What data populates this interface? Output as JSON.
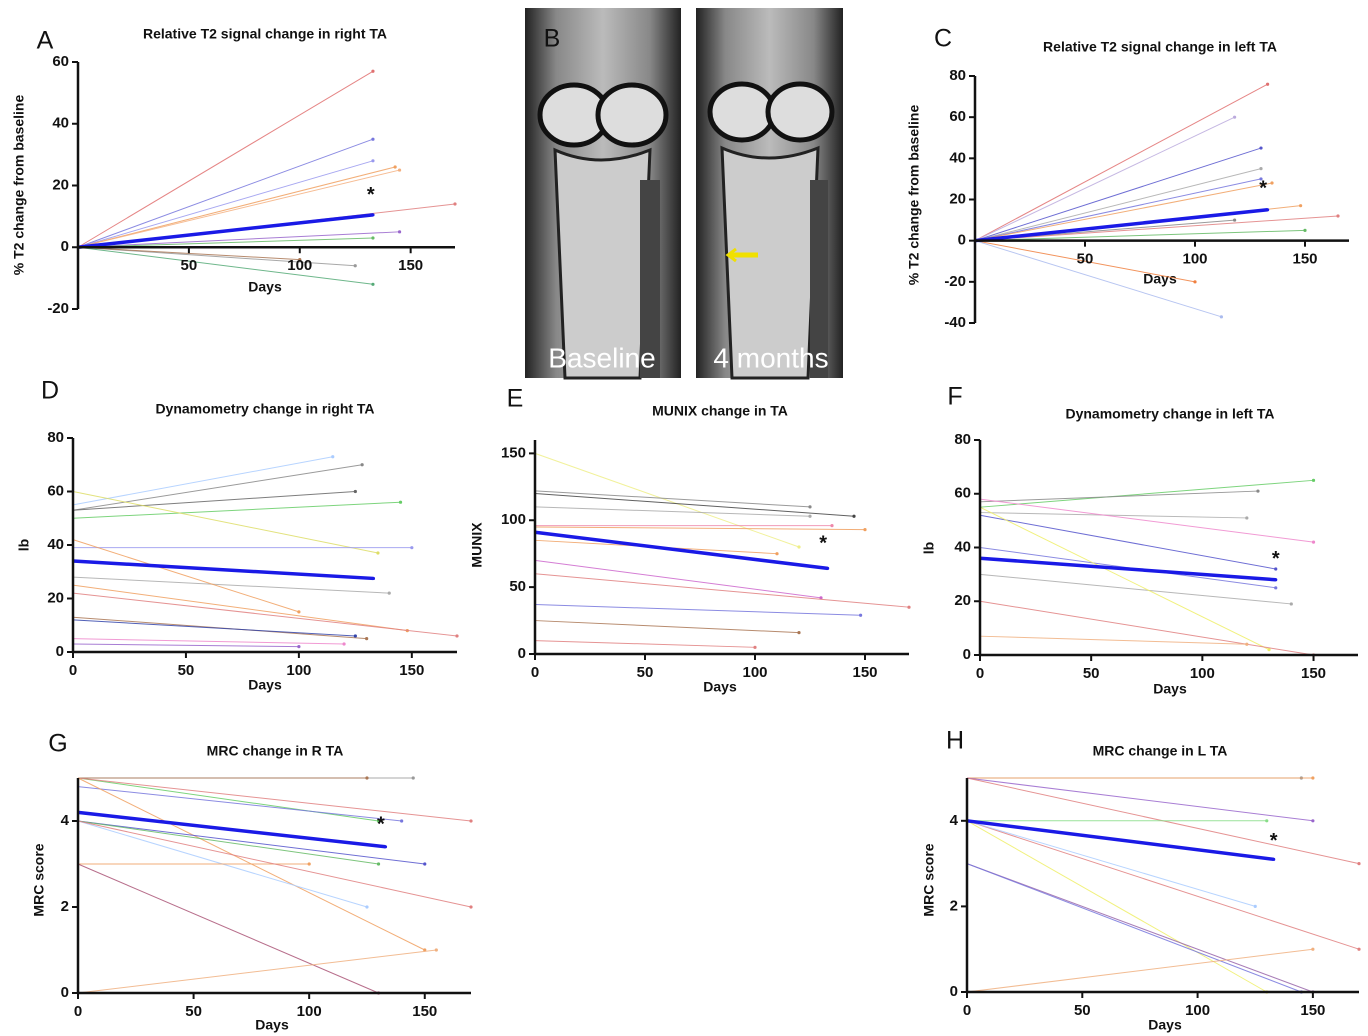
{
  "chart_data": [
    {
      "type": "line",
      "panel": "A",
      "title": "Relative T2 signal change in right TA",
      "xlabel": "Days",
      "ylabel": "% T2 change from baseline",
      "xlim": [
        0,
        170
      ],
      "ylim": [
        -20,
        60
      ],
      "xticks": [
        50,
        100,
        150
      ],
      "yticks": [
        -20,
        0,
        20,
        40,
        60
      ],
      "annotation": {
        "text": "*",
        "x": 132,
        "y": 18
      },
      "series": [
        {
          "color": "#e07070",
          "x": [
            0,
            133
          ],
          "values": [
            0,
            57
          ]
        },
        {
          "color": "#7777dd",
          "x": [
            0,
            133
          ],
          "values": [
            0,
            35
          ]
        },
        {
          "color": "#9999ee",
          "x": [
            0,
            133
          ],
          "values": [
            0,
            28
          ]
        },
        {
          "color": "#f0a060",
          "x": [
            0,
            143
          ],
          "values": [
            0,
            26
          ]
        },
        {
          "color": "#f4b080",
          "x": [
            0,
            145
          ],
          "values": [
            0,
            25
          ]
        },
        {
          "color": "#e08080",
          "x": [
            0,
            170
          ],
          "values": [
            0,
            14
          ]
        },
        {
          "color": "#9966cc",
          "x": [
            0,
            145
          ],
          "values": [
            0,
            5
          ]
        },
        {
          "color": "#66bb66",
          "x": [
            0,
            133
          ],
          "values": [
            0,
            3
          ]
        },
        {
          "color": "#999999",
          "x": [
            0,
            125
          ],
          "values": [
            0,
            -6
          ]
        },
        {
          "color": "#aa7755",
          "x": [
            0,
            100
          ],
          "values": [
            0,
            -4
          ]
        },
        {
          "color": "#55aa77",
          "x": [
            0,
            133
          ],
          "values": [
            0,
            -12
          ]
        },
        {
          "color": "#1a1ae6",
          "x": [
            0,
            133
          ],
          "values": [
            0,
            10.5
          ],
          "line_width": 3.5
        }
      ]
    },
    {
      "type": "line",
      "panel": "C",
      "title": "Relative T2 signal change in left TA",
      "xlabel": "Days",
      "ylabel": "% T2 change from baseline",
      "xlim": [
        0,
        170
      ],
      "ylim": [
        -40,
        80
      ],
      "xticks": [
        50,
        100,
        150
      ],
      "yticks": [
        -40,
        -20,
        0,
        20,
        40,
        60,
        80
      ],
      "annotation": {
        "text": "*",
        "x": 131,
        "y": 27
      },
      "series": [
        {
          "color": "#e07070",
          "x": [
            0,
            133
          ],
          "values": [
            0,
            76
          ]
        },
        {
          "color": "#bbaadd",
          "x": [
            0,
            118
          ],
          "values": [
            0,
            60
          ]
        },
        {
          "color": "#5555cc",
          "x": [
            0,
            130
          ],
          "values": [
            0,
            45
          ]
        },
        {
          "color": "#aaaaaa",
          "x": [
            0,
            130
          ],
          "values": [
            0,
            35
          ]
        },
        {
          "color": "#7777dd",
          "x": [
            0,
            130
          ],
          "values": [
            0,
            30
          ]
        },
        {
          "color": "#f0a060",
          "x": [
            0,
            135
          ],
          "values": [
            0,
            28
          ]
        },
        {
          "color": "#f0a060",
          "x": [
            0,
            148
          ],
          "values": [
            0,
            17
          ]
        },
        {
          "color": "#e08080",
          "x": [
            0,
            165
          ],
          "values": [
            0,
            12
          ]
        },
        {
          "color": "#888888",
          "x": [
            0,
            118
          ],
          "values": [
            0,
            10
          ]
        },
        {
          "color": "#66bb66",
          "x": [
            0,
            150
          ],
          "values": [
            0,
            5
          ]
        },
        {
          "color": "#f08040",
          "x": [
            0,
            100
          ],
          "values": [
            0,
            -20
          ]
        },
        {
          "color": "#aabbee",
          "x": [
            0,
            112
          ],
          "values": [
            0,
            -37
          ]
        },
        {
          "color": "#1a1ae6",
          "x": [
            0,
            133
          ],
          "values": [
            0,
            15
          ],
          "line_width": 3.5
        }
      ]
    },
    {
      "type": "line",
      "panel": "D",
      "title": "Dynamometry change in right TA",
      "xlabel": "Days",
      "ylabel": "lb",
      "xlim": [
        0,
        170
      ],
      "ylim": [
        0,
        80
      ],
      "xticks": [
        0,
        50,
        100,
        150
      ],
      "yticks": [
        0,
        20,
        40,
        60,
        80
      ],
      "series": [
        {
          "color": "#aaccff",
          "x": [
            0,
            115
          ],
          "values": [
            55,
            73
          ]
        },
        {
          "color": "#888888",
          "x": [
            0,
            128
          ],
          "values": [
            53,
            70
          ]
        },
        {
          "color": "#666666",
          "x": [
            0,
            125
          ],
          "values": [
            53,
            60
          ]
        },
        {
          "color": "#66cc66",
          "x": [
            0,
            145
          ],
          "values": [
            50,
            56
          ]
        },
        {
          "color": "#dddd66",
          "x": [
            0,
            135
          ],
          "values": [
            60,
            37
          ]
        },
        {
          "color": "#9999ee",
          "x": [
            0,
            150
          ],
          "values": [
            39,
            39
          ]
        },
        {
          "color": "#aaaaaa",
          "x": [
            0,
            140
          ],
          "values": [
            28,
            22
          ]
        },
        {
          "color": "#f0a060",
          "x": [
            0,
            100
          ],
          "values": [
            42,
            15
          ]
        },
        {
          "color": "#f0a060",
          "x": [
            0,
            148
          ],
          "values": [
            25,
            8
          ]
        },
        {
          "color": "#e08080",
          "x": [
            0,
            170
          ],
          "values": [
            22,
            6
          ]
        },
        {
          "color": "#aa7755",
          "x": [
            0,
            130
          ],
          "values": [
            13,
            5
          ]
        },
        {
          "color": "#3344aa",
          "x": [
            0,
            125
          ],
          "values": [
            12,
            6
          ]
        },
        {
          "color": "#ee88cc",
          "x": [
            0,
            120
          ],
          "values": [
            5,
            3
          ]
        },
        {
          "color": "#9966cc",
          "x": [
            0,
            100
          ],
          "values": [
            3,
            2
          ]
        },
        {
          "color": "#1a1ae6",
          "x": [
            0,
            133
          ],
          "values": [
            34,
            27.5
          ],
          "line_width": 3.5
        }
      ]
    },
    {
      "type": "line",
      "panel": "E",
      "title": "MUNIX change in TA",
      "xlabel": "Days",
      "ylabel": "MUNIX",
      "xlim": [
        0,
        170
      ],
      "ylim": [
        0,
        160
      ],
      "xticks": [
        0,
        50,
        100,
        150
      ],
      "yticks": [
        0,
        50,
        100,
        150
      ],
      "annotation": {
        "text": "*",
        "x": 131,
        "y": 85
      },
      "series": [
        {
          "color": "#eeee88",
          "x": [
            0,
            120
          ],
          "values": [
            150,
            80
          ]
        },
        {
          "color": "#888888",
          "x": [
            0,
            125
          ],
          "values": [
            122,
            110
          ]
        },
        {
          "color": "#444444",
          "x": [
            0,
            145
          ],
          "values": [
            120,
            103
          ]
        },
        {
          "color": "#aaaaaa",
          "x": [
            0,
            125
          ],
          "values": [
            110,
            103
          ]
        },
        {
          "color": "#f0a060",
          "x": [
            0,
            150
          ],
          "values": [
            95,
            93
          ]
        },
        {
          "color": "#ee88aa",
          "x": [
            0,
            135
          ],
          "values": [
            96,
            96
          ]
        },
        {
          "color": "#f0a060",
          "x": [
            0,
            110
          ],
          "values": [
            85,
            75
          ]
        },
        {
          "color": "#cc66cc",
          "x": [
            0,
            130
          ],
          "values": [
            70,
            42
          ]
        },
        {
          "color": "#e08080",
          "x": [
            0,
            170
          ],
          "values": [
            60,
            35
          ]
        },
        {
          "color": "#7777dd",
          "x": [
            0,
            148
          ],
          "values": [
            37,
            29
          ]
        },
        {
          "color": "#aa7755",
          "x": [
            0,
            120
          ],
          "values": [
            25,
            16
          ]
        },
        {
          "color": "#e08080",
          "x": [
            0,
            100
          ],
          "values": [
            10,
            5
          ]
        },
        {
          "color": "#1a1ae6",
          "x": [
            0,
            133
          ],
          "values": [
            91,
            64
          ],
          "line_width": 3.5
        }
      ]
    },
    {
      "type": "line",
      "panel": "F",
      "title": "Dynamometry change in left TA",
      "xlabel": "Days",
      "ylabel": "lb",
      "xlim": [
        0,
        170
      ],
      "ylim": [
        0,
        80
      ],
      "xticks": [
        0,
        50,
        100,
        150
      ],
      "yticks": [
        0,
        20,
        40,
        60,
        80
      ],
      "annotation": {
        "text": "*",
        "x": 133,
        "y": 37
      },
      "series": [
        {
          "color": "#66cc66",
          "x": [
            0,
            150
          ],
          "values": [
            55,
            65
          ]
        },
        {
          "color": "#888888",
          "x": [
            0,
            125
          ],
          "values": [
            57,
            61
          ]
        },
        {
          "color": "#aaaaaa",
          "x": [
            0,
            120
          ],
          "values": [
            53,
            51
          ]
        },
        {
          "color": "#ee88cc",
          "x": [
            0,
            150
          ],
          "values": [
            58,
            42
          ]
        },
        {
          "color": "#5555cc",
          "x": [
            0,
            133
          ],
          "values": [
            52,
            32
          ]
        },
        {
          "color": "#7777dd",
          "x": [
            0,
            133
          ],
          "values": [
            40,
            25
          ]
        },
        {
          "color": "#aaaaaa",
          "x": [
            0,
            140
          ],
          "values": [
            30,
            19
          ]
        },
        {
          "color": "#eeee66",
          "x": [
            0,
            130
          ],
          "values": [
            55,
            2
          ]
        },
        {
          "color": "#e08080",
          "x": [
            0,
            150
          ],
          "values": [
            20,
            0
          ]
        },
        {
          "color": "#f0b080",
          "x": [
            0,
            120
          ],
          "values": [
            7,
            4
          ]
        },
        {
          "color": "#1a1ae6",
          "x": [
            0,
            133
          ],
          "values": [
            36,
            28
          ],
          "line_width": 3.5
        }
      ]
    },
    {
      "type": "line",
      "panel": "G",
      "title": "MRC change in R TA",
      "xlabel": "Days",
      "ylabel": "MRC score",
      "xlim": [
        0,
        170
      ],
      "ylim": [
        0,
        5
      ],
      "xticks": [
        0,
        50,
        100,
        150
      ],
      "yticks": [
        0,
        2,
        4
      ],
      "annotation": {
        "text": "*",
        "x": 131,
        "y": 4
      },
      "series": [
        {
          "color": "#999999",
          "x": [
            0,
            145
          ],
          "values": [
            5,
            5
          ]
        },
        {
          "color": "#aa7755",
          "x": [
            0,
            125
          ],
          "values": [
            5,
            5
          ]
        },
        {
          "color": "#66cc66",
          "x": [
            0,
            130
          ],
          "values": [
            5,
            4
          ]
        },
        {
          "color": "#e08080",
          "x": [
            0,
            170
          ],
          "values": [
            5,
            4
          ]
        },
        {
          "color": "#7777dd",
          "x": [
            0,
            140
          ],
          "values": [
            4.8,
            4
          ]
        },
        {
          "color": "#f0a060",
          "x": [
            0,
            150
          ],
          "values": [
            5,
            1
          ]
        },
        {
          "color": "#5555cc",
          "x": [
            0,
            150
          ],
          "values": [
            4,
            3
          ]
        },
        {
          "color": "#66bb66",
          "x": [
            0,
            130
          ],
          "values": [
            4,
            3
          ]
        },
        {
          "color": "#aaccff",
          "x": [
            0,
            125
          ],
          "values": [
            4,
            2
          ]
        },
        {
          "color": "#f0a060",
          "x": [
            0,
            100
          ],
          "values": [
            3,
            3
          ]
        },
        {
          "color": "#e08080",
          "x": [
            0,
            170
          ],
          "values": [
            4,
            2
          ]
        },
        {
          "color": "#aa5577",
          "x": [
            0,
            130
          ],
          "values": [
            3,
            0
          ]
        },
        {
          "color": "#f0b080",
          "x": [
            0,
            155
          ],
          "values": [
            0,
            1
          ]
        },
        {
          "color": "#1a1ae6",
          "x": [
            0,
            133
          ],
          "values": [
            4.2,
            3.4
          ],
          "line_width": 3.5
        }
      ]
    },
    {
      "type": "line",
      "panel": "H",
      "title": "MRC change in L TA",
      "xlabel": "Days",
      "ylabel": "MRC score",
      "xlim": [
        0,
        170
      ],
      "ylim": [
        0,
        5
      ],
      "xticks": [
        0,
        50,
        100,
        150
      ],
      "yticks": [
        0,
        2,
        4
      ],
      "annotation": {
        "text": "*",
        "x": 133,
        "y": 3.6
      },
      "series": [
        {
          "color": "#999999",
          "x": [
            0,
            145
          ],
          "values": [
            5,
            5
          ]
        },
        {
          "color": "#f0a060",
          "x": [
            0,
            150
          ],
          "values": [
            5,
            5
          ]
        },
        {
          "color": "#9966cc",
          "x": [
            0,
            150
          ],
          "values": [
            5,
            4
          ]
        },
        {
          "color": "#e08080",
          "x": [
            0,
            170
          ],
          "values": [
            5,
            3
          ]
        },
        {
          "color": "#88dd88",
          "x": [
            0,
            130
          ],
          "values": [
            4,
            4
          ]
        },
        {
          "color": "#e08080",
          "x": [
            0,
            170
          ],
          "values": [
            4,
            1
          ]
        },
        {
          "color": "#aaccff",
          "x": [
            0,
            125
          ],
          "values": [
            4,
            2
          ]
        },
        {
          "color": "#eeee66",
          "x": [
            0,
            130
          ],
          "values": [
            4,
            0
          ]
        },
        {
          "color": "#9966aa",
          "x": [
            0,
            150
          ],
          "values": [
            3,
            0
          ]
        },
        {
          "color": "#7777dd",
          "x": [
            0,
            145
          ],
          "values": [
            3,
            0
          ]
        },
        {
          "color": "#f0b080",
          "x": [
            0,
            150
          ],
          "values": [
            0,
            1
          ]
        },
        {
          "color": "#1a1ae6",
          "x": [
            0,
            133
          ],
          "values": [
            4,
            3.1
          ],
          "line_width": 3.5
        }
      ]
    }
  ],
  "image_panel": {
    "label": "B",
    "captions": [
      "Baseline",
      "4 months"
    ]
  }
}
